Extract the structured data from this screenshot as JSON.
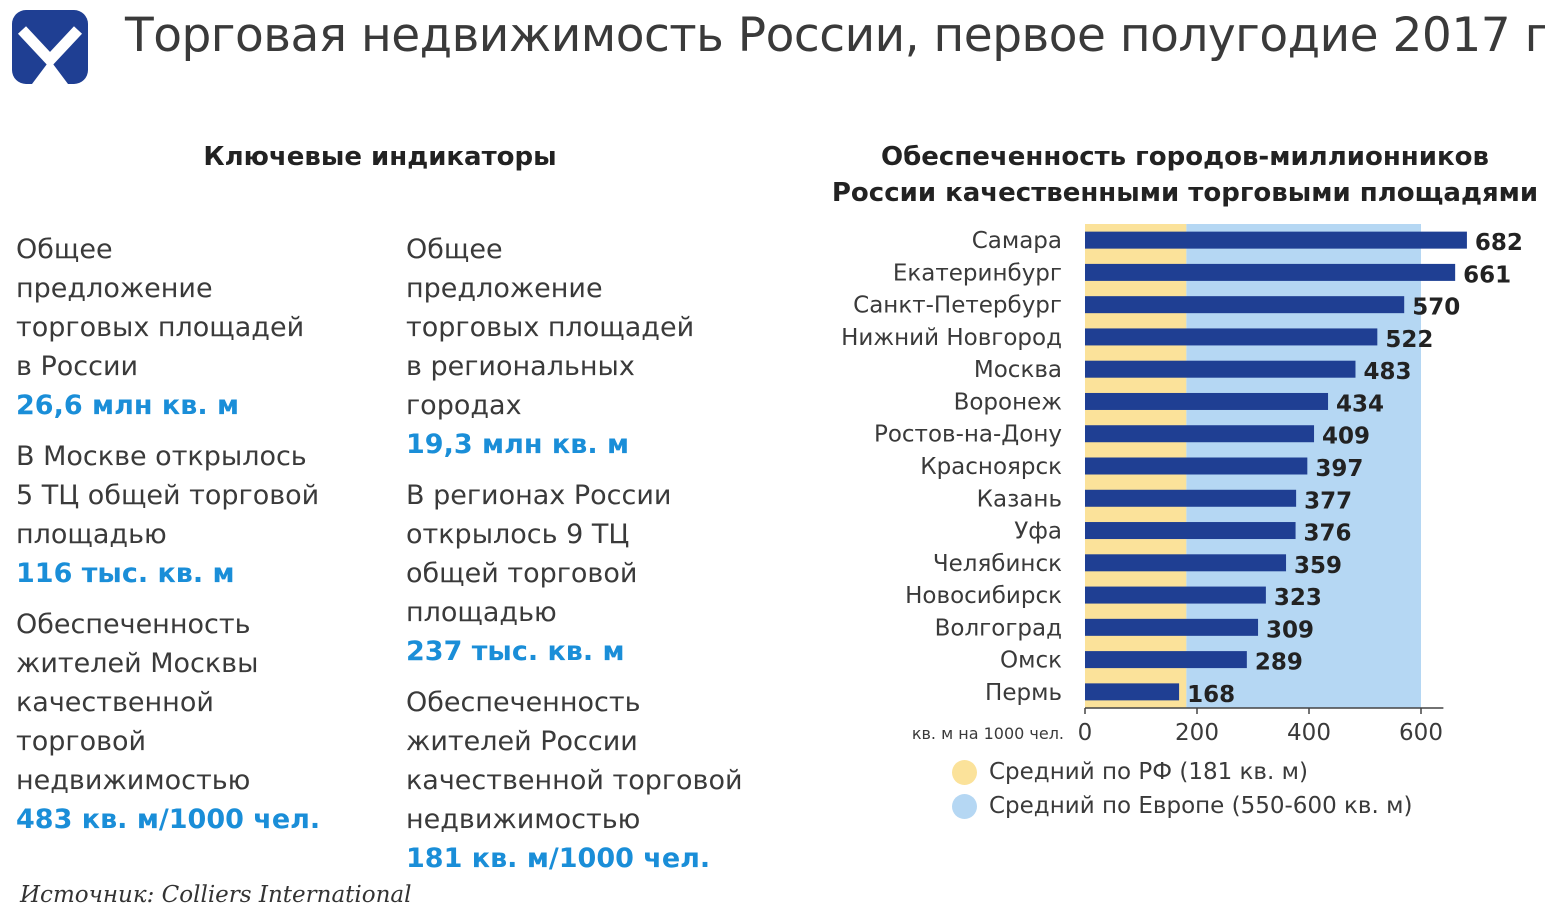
{
  "header": {
    "title": "Торговая недвижимость России, первое полугодие 2017 г."
  },
  "indicators": {
    "title": "Ключевые индикаторы",
    "left": [
      {
        "label": "Общее предложение торговых площадей в России",
        "value": "26,6 млн кв. м"
      },
      {
        "label": "В Москве открылось 5 ТЦ общей торговой площадью",
        "value": "116 тыс. кв. м"
      },
      {
        "label": "Обеспеченность жителей Москвы качественной торговой недвижимостью",
        "value": "483 кв. м/1000 чел."
      }
    ],
    "right": [
      {
        "label": "Общее предложение торговых площадей в региональных городах",
        "value": "19,3 млн кв. м"
      },
      {
        "label": "В регионах России открылось 9 ТЦ общей торговой площадью",
        "value": "237 тыс. кв. м"
      },
      {
        "label": "Обеспеченность жителей России качественной торговой недвижимостью",
        "value": "181 кв. м/1000 чел."
      }
    ]
  },
  "chart_data": {
    "type": "bar",
    "orientation": "horizontal",
    "title": "Обеспеченность городов-миллионников России качественными торговыми площадями",
    "unit_label": "кв. м на 1000 чел.",
    "categories": [
      "Самара",
      "Екатеринбург",
      "Санкт-Петербург",
      "Нижний Новгород",
      "Москва",
      "Воронеж",
      "Ростов-на-Дону",
      "Красноярск",
      "Казань",
      "Уфа",
      "Челябинск",
      "Новосибирск",
      "Волгоград",
      "Омск",
      "Пермь"
    ],
    "values": [
      682,
      661,
      570,
      522,
      483,
      434,
      409,
      397,
      377,
      376,
      359,
      323,
      309,
      289,
      168
    ],
    "xlim": [
      0,
      700
    ],
    "xticks": [
      0,
      200,
      400,
      600
    ],
    "bar_color": "#1f3f93",
    "bands": [
      {
        "name": "Средний по РФ (181 кв. м)",
        "from": 0,
        "to": 181,
        "color": "#fbe29a"
      },
      {
        "name": "Средний по Европе (550-600 кв. м)",
        "from": 181,
        "to": 600,
        "color": "#b5d7f3"
      }
    ]
  },
  "source": "Источник: Colliers International",
  "colors": {
    "accent": "#1a8ed8",
    "logo": "#1f3f93"
  }
}
